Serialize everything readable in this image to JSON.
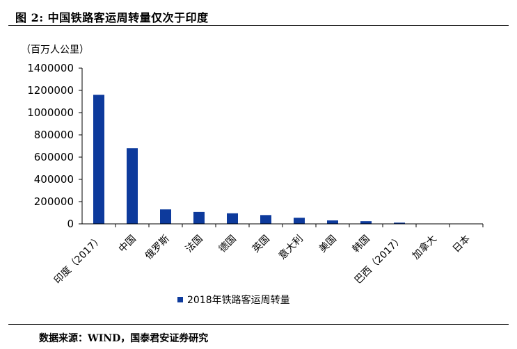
{
  "figure": {
    "title": "图 2:  中国铁路客运周转量仅次于印度",
    "source": "数据来源：WIND，国泰君安证券研究"
  },
  "chart_data": {
    "type": "bar",
    "unit_label": "（百万人公里）",
    "categories": [
      "印度（2017）",
      "中国",
      "俄罗斯",
      "法国",
      "德国",
      "英国",
      "意大利",
      "美国",
      "韩国",
      "巴西（2017）",
      "加拿大",
      "日本"
    ],
    "series": [
      {
        "name": "2018年铁路客运周转量",
        "values": [
          1160000,
          680000,
          130000,
          107000,
          95000,
          79000,
          55000,
          31000,
          24000,
          11000,
          2000,
          1000
        ],
        "color": "#0d3a9c"
      }
    ],
    "yticks": [
      0,
      200000,
      400000,
      600000,
      800000,
      1000000,
      1200000,
      1400000
    ],
    "ylim": [
      0,
      1400000
    ],
    "legend_position": "bottom",
    "grid": false
  }
}
